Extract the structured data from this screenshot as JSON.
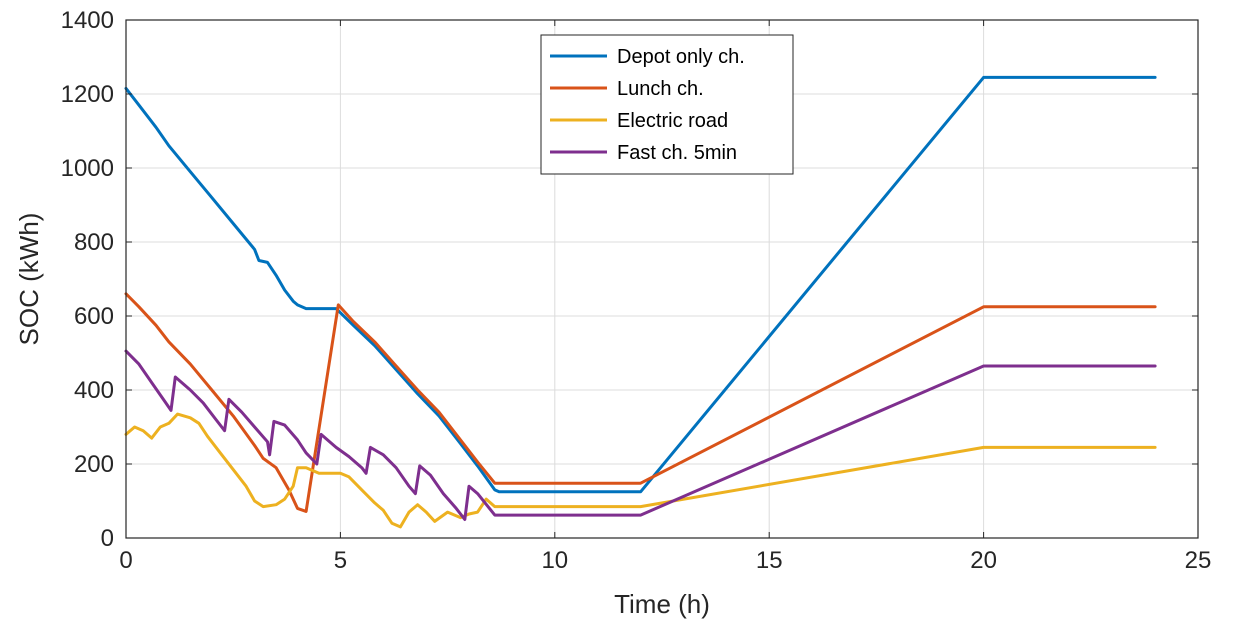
{
  "chart_data": {
    "type": "line",
    "title": "",
    "xlabel": "Time (h)",
    "ylabel": "SOC (kWh)",
    "xlim": [
      0,
      25
    ],
    "ylim": [
      0,
      1400
    ],
    "xticks": [
      0,
      5,
      10,
      15,
      20,
      25
    ],
    "yticks": [
      0,
      200,
      400,
      600,
      800,
      1000,
      1200,
      1400
    ],
    "grid": true,
    "legend_position": "top-center",
    "series": [
      {
        "name": "Depot only ch.",
        "color": "#0072BD",
        "points": [
          [
            0,
            1215
          ],
          [
            0.3,
            1170
          ],
          [
            0.7,
            1110
          ],
          [
            1,
            1060
          ],
          [
            1.5,
            990
          ],
          [
            2,
            920
          ],
          [
            2.5,
            850
          ],
          [
            3,
            780
          ],
          [
            3.1,
            750
          ],
          [
            3.3,
            745
          ],
          [
            3.5,
            710
          ],
          [
            3.7,
            670
          ],
          [
            3.9,
            640
          ],
          [
            4,
            630
          ],
          [
            4.2,
            620
          ],
          [
            4.5,
            620
          ],
          [
            4.9,
            620
          ],
          [
            5.3,
            575
          ],
          [
            5.8,
            520
          ],
          [
            6.3,
            455
          ],
          [
            6.8,
            390
          ],
          [
            7.3,
            330
          ],
          [
            7.8,
            255
          ],
          [
            8.2,
            195
          ],
          [
            8.6,
            130
          ],
          [
            8.7,
            125
          ],
          [
            12,
            125
          ],
          [
            20,
            1245
          ],
          [
            24,
            1245
          ]
        ]
      },
      {
        "name": "Lunch ch.",
        "color": "#D95319",
        "points": [
          [
            0,
            660
          ],
          [
            0.3,
            625
          ],
          [
            0.7,
            575
          ],
          [
            1,
            530
          ],
          [
            1.5,
            470
          ],
          [
            2,
            400
          ],
          [
            2.5,
            330
          ],
          [
            3,
            250
          ],
          [
            3.2,
            215
          ],
          [
            3.5,
            190
          ],
          [
            3.8,
            130
          ],
          [
            4,
            80
          ],
          [
            4.2,
            72
          ],
          [
            4.95,
            630
          ],
          [
            5.3,
            585
          ],
          [
            5.8,
            530
          ],
          [
            6.3,
            465
          ],
          [
            6.8,
            400
          ],
          [
            7.3,
            340
          ],
          [
            7.8,
            265
          ],
          [
            8.2,
            205
          ],
          [
            8.6,
            148
          ],
          [
            12,
            148
          ],
          [
            20,
            625
          ],
          [
            24,
            625
          ]
        ]
      },
      {
        "name": "Electric road",
        "color": "#EDB120",
        "points": [
          [
            0,
            280
          ],
          [
            0.2,
            300
          ],
          [
            0.4,
            290
          ],
          [
            0.6,
            270
          ],
          [
            0.8,
            300
          ],
          [
            1,
            310
          ],
          [
            1.2,
            335
          ],
          [
            1.5,
            325
          ],
          [
            1.7,
            310
          ],
          [
            1.9,
            275
          ],
          [
            2.2,
            230
          ],
          [
            2.5,
            185
          ],
          [
            2.8,
            140
          ],
          [
            3,
            100
          ],
          [
            3.2,
            85
          ],
          [
            3.5,
            90
          ],
          [
            3.7,
            105
          ],
          [
            3.9,
            140
          ],
          [
            4,
            190
          ],
          [
            4.2,
            190
          ],
          [
            4.5,
            175
          ],
          [
            5,
            175
          ],
          [
            5.2,
            165
          ],
          [
            5.5,
            130
          ],
          [
            5.8,
            95
          ],
          [
            6,
            75
          ],
          [
            6.2,
            40
          ],
          [
            6.4,
            30
          ],
          [
            6.6,
            70
          ],
          [
            6.8,
            90
          ],
          [
            7,
            70
          ],
          [
            7.2,
            45
          ],
          [
            7.5,
            70
          ],
          [
            7.8,
            55
          ],
          [
            8,
            65
          ],
          [
            8.2,
            70
          ],
          [
            8.4,
            105
          ],
          [
            8.6,
            85
          ],
          [
            12,
            85
          ],
          [
            20,
            245
          ],
          [
            24,
            245
          ]
        ]
      },
      {
        "name": "Fast ch. 5min",
        "color": "#7E2F8E",
        "points": [
          [
            0,
            505
          ],
          [
            0.3,
            470
          ],
          [
            0.6,
            420
          ],
          [
            0.9,
            370
          ],
          [
            1.05,
            345
          ],
          [
            1.15,
            435
          ],
          [
            1.5,
            400
          ],
          [
            1.8,
            365
          ],
          [
            2.1,
            320
          ],
          [
            2.3,
            290
          ],
          [
            2.4,
            375
          ],
          [
            2.7,
            340
          ],
          [
            3,
            300
          ],
          [
            3.3,
            260
          ],
          [
            3.35,
            225
          ],
          [
            3.45,
            315
          ],
          [
            3.7,
            305
          ],
          [
            4,
            265
          ],
          [
            4.2,
            230
          ],
          [
            4.45,
            200
          ],
          [
            4.55,
            280
          ],
          [
            4.9,
            245
          ],
          [
            5.2,
            220
          ],
          [
            5.5,
            190
          ],
          [
            5.6,
            175
          ],
          [
            5.7,
            245
          ],
          [
            6,
            225
          ],
          [
            6.3,
            190
          ],
          [
            6.6,
            140
          ],
          [
            6.75,
            120
          ],
          [
            6.85,
            195
          ],
          [
            7.1,
            170
          ],
          [
            7.4,
            120
          ],
          [
            7.7,
            80
          ],
          [
            7.9,
            50
          ],
          [
            8,
            140
          ],
          [
            8.2,
            120
          ],
          [
            8.6,
            62
          ],
          [
            12,
            62
          ],
          [
            20,
            465
          ],
          [
            24,
            465
          ]
        ]
      }
    ]
  }
}
